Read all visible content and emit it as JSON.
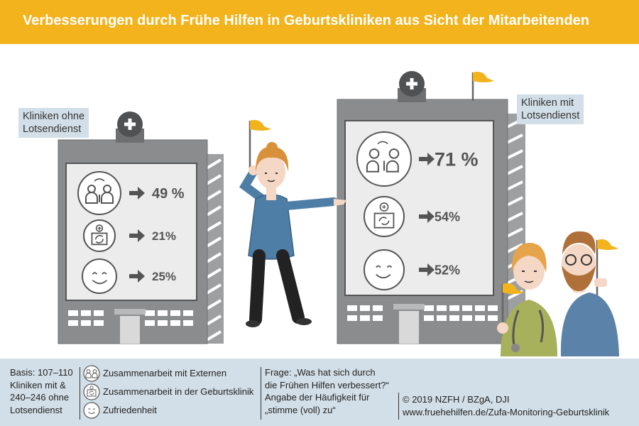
{
  "title": "Verbesserungen durch Frühe Hilfen in Geburtskliniken aus Sicht der Mitarbeitenden",
  "colors": {
    "header": "#f2b31c",
    "footer": "#d3dfe8",
    "building": "#8a8c8e",
    "panel": "#ececec",
    "text": "#545454",
    "flag": "#f2b31c"
  },
  "chart_data": {
    "type": "table",
    "groups": [
      {
        "name": "Kliniken ohne Lotsendienst",
        "values": [
          {
            "category": "Zusammenarbeit mit Externen",
            "value": 49,
            "label": "49 %"
          },
          {
            "category": "Zusammenarbeit in der Geburtsklinik",
            "value": 21,
            "label": "21%"
          },
          {
            "category": "Zufriedenheit",
            "value": 25,
            "label": "25%"
          }
        ]
      },
      {
        "name": "Kliniken mit Lotsendienst",
        "values": [
          {
            "category": "Zusammenarbeit mit Externen",
            "value": 71,
            "label": "71 %"
          },
          {
            "category": "Zusammenarbeit in der Geburtsklinik",
            "value": 54,
            "label": "54%"
          },
          {
            "category": "Zufriedenheit",
            "value": 52,
            "label": "52%"
          }
        ]
      }
    ],
    "label_without": [
      "Kliniken ohne",
      "Lotsendienst"
    ],
    "label_with": [
      "Kliniken mit",
      "Lotsendienst"
    ]
  },
  "footer": {
    "basis": [
      "Basis: 107–110",
      "Kliniken mit &",
      "240–246 ohne",
      "Lotsendienst"
    ],
    "legend": [
      {
        "icon": "people-icon",
        "label": "Zusammenarbeit mit Externen"
      },
      {
        "icon": "hospital-cycle-icon",
        "label": "Zusammenarbeit in der Geburtsklinik"
      },
      {
        "icon": "smiley-icon",
        "label": "Zufriedenheit"
      }
    ],
    "question": [
      "Frage: „Was hat sich durch",
      "die Frühen Hilfen verbessert?“",
      "Angabe der Häufigkeit für",
      "„stimme (voll) zu“"
    ],
    "credit": "© 2019 NZFH / BZgA, DJI",
    "url": "www.fruehehilfen.de/Zufa-Monitoring-Geburtsklinik"
  }
}
